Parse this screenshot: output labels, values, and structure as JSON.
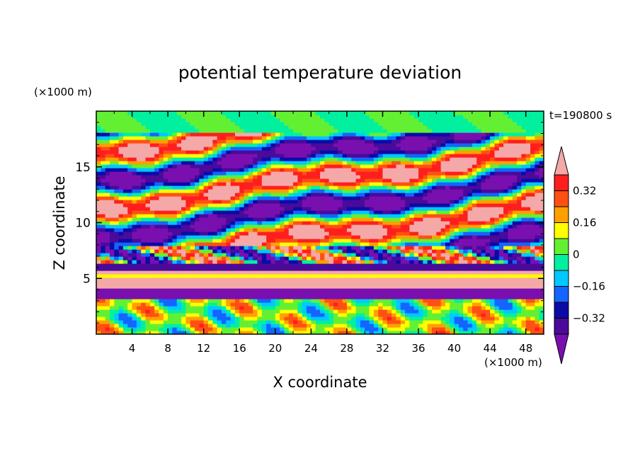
{
  "chart_data": {
    "type": "heatmap",
    "title": "potential temperature deviation",
    "xlabel": "X coordinate",
    "ylabel": "Z coordinate",
    "x_unit": "(×1000 m)",
    "y_unit": "(×1000 m)",
    "time_label": "t=190800 s",
    "xlim": [
      0,
      50
    ],
    "ylim": [
      0,
      20
    ],
    "x_ticks": [
      4,
      8,
      12,
      16,
      20,
      24,
      28,
      32,
      36,
      40,
      44,
      48
    ],
    "y_ticks": [
      5,
      10,
      15
    ],
    "colorbar": {
      "levels": [
        -0.4,
        -0.32,
        -0.24,
        -0.16,
        -0.08,
        0,
        0.08,
        0.16,
        0.24,
        0.32,
        0.4
      ],
      "tick_labels": [
        "0.32",
        "0.16",
        "0",
        "−0.16",
        "−0.32"
      ],
      "tick_values": [
        0.32,
        0.16,
        0,
        -0.16,
        -0.32
      ],
      "colors": [
        "#7a0fb0",
        "#4a0a9a",
        "#0a0aa8",
        "#1464ff",
        "#00c8ff",
        "#00f0a0",
        "#64f032",
        "#ffff00",
        "#ffa000",
        "#ff5014",
        "#ff1e1e",
        "#f5a8a8"
      ],
      "extend": "both"
    }
  }
}
